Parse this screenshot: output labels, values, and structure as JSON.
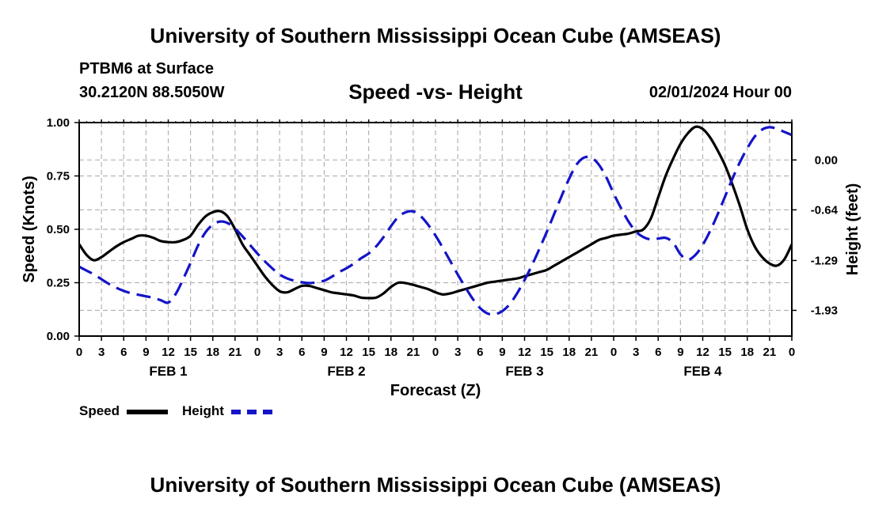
{
  "page": {
    "title_top": "University of Southern Mississippi Ocean Cube (AMSEAS)",
    "title_bottom": "University of Southern Mississippi Ocean Cube (AMSEAS)",
    "station": "PTBM6 at Surface",
    "coords": "30.2120N  88.5050W",
    "datetime": "02/01/2024 Hour 00"
  },
  "legend": {
    "speed_label": "Speed",
    "height_label": "Height"
  },
  "colors": {
    "speed": "#000000",
    "height": "#1414c8",
    "grid": "#b4b4b4"
  },
  "chart_data": {
    "type": "line",
    "title": "Speed -vs- Height",
    "xlabel": "Forecast (Z)",
    "ylabel": "Speed (Knots)",
    "y2label": "Height (feet)",
    "xlim": [
      0,
      96
    ],
    "ylim": [
      0,
      1.0
    ],
    "y2lim": [
      -2.26,
      0.48
    ],
    "x_ticks": [
      0,
      3,
      6,
      9,
      12,
      15,
      18,
      21,
      24,
      27,
      30,
      33,
      36,
      39,
      42,
      45,
      48,
      51,
      54,
      57,
      60,
      63,
      66,
      69,
      72,
      75,
      78,
      81,
      84,
      87,
      90,
      93,
      96
    ],
    "x_tick_labels": [
      "0",
      "3",
      "6",
      "9",
      "12",
      "15",
      "18",
      "21",
      "0",
      "3",
      "6",
      "9",
      "12",
      "15",
      "18",
      "21",
      "0",
      "3",
      "6",
      "9",
      "12",
      "15",
      "18",
      "21",
      "0",
      "3",
      "6",
      "9",
      "12",
      "15",
      "18",
      "21",
      "0"
    ],
    "day_labels": [
      {
        "x": 12,
        "label": "FEB 1"
      },
      {
        "x": 36,
        "label": "FEB 2"
      },
      {
        "x": 60,
        "label": "FEB 3"
      },
      {
        "x": 84,
        "label": "FEB 4"
      }
    ],
    "y_ticks": [
      0.0,
      0.25,
      0.5,
      0.75,
      1.0
    ],
    "y_tick_labels": [
      "0.00",
      "0.25",
      "0.50",
      "0.75",
      "1.00"
    ],
    "y2_ticks": [
      0.0,
      -0.64,
      -1.29,
      -1.93
    ],
    "y2_tick_labels": [
      "0.00",
      "-0.64",
      "-1.29",
      "-1.93"
    ],
    "series": [
      {
        "name": "Speed",
        "axis": "left",
        "style": "solid",
        "x": [
          0,
          1,
          2,
          3,
          4,
          5,
          6,
          7,
          8,
          9,
          10,
          11,
          12,
          13,
          14,
          15,
          16,
          17,
          18,
          19,
          20,
          21,
          22,
          23,
          24,
          25,
          26,
          27,
          28,
          29,
          30,
          31,
          32,
          33,
          34,
          35,
          36,
          37,
          38,
          39,
          40,
          41,
          42,
          43,
          44,
          45,
          46,
          47,
          48,
          49,
          50,
          51,
          52,
          53,
          54,
          55,
          56,
          57,
          58,
          59,
          60,
          61,
          62,
          63,
          64,
          65,
          66,
          67,
          68,
          69,
          70,
          71,
          72,
          73,
          74,
          75,
          76,
          77,
          78,
          79,
          80,
          81,
          82,
          83,
          84,
          85,
          86,
          87,
          88,
          89,
          90,
          91,
          92,
          93,
          94,
          95,
          96
        ],
        "values": [
          0.43,
          0.38,
          0.355,
          0.37,
          0.395,
          0.42,
          0.44,
          0.455,
          0.47,
          0.47,
          0.46,
          0.445,
          0.44,
          0.44,
          0.45,
          0.47,
          0.52,
          0.56,
          0.58,
          0.585,
          0.56,
          0.5,
          0.43,
          0.38,
          0.33,
          0.28,
          0.24,
          0.21,
          0.205,
          0.22,
          0.235,
          0.235,
          0.225,
          0.215,
          0.205,
          0.2,
          0.195,
          0.19,
          0.18,
          0.178,
          0.18,
          0.2,
          0.23,
          0.25,
          0.248,
          0.24,
          0.23,
          0.22,
          0.205,
          0.195,
          0.2,
          0.21,
          0.22,
          0.23,
          0.24,
          0.25,
          0.255,
          0.26,
          0.265,
          0.27,
          0.28,
          0.29,
          0.3,
          0.31,
          0.33,
          0.35,
          0.37,
          0.39,
          0.41,
          0.43,
          0.45,
          0.46,
          0.47,
          0.475,
          0.48,
          0.49,
          0.5,
          0.55,
          0.65,
          0.75,
          0.83,
          0.9,
          0.95,
          0.98,
          0.97,
          0.93,
          0.87,
          0.8,
          0.71,
          0.61,
          0.5,
          0.42,
          0.37,
          0.34,
          0.33,
          0.36,
          0.43
        ]
      },
      {
        "name": "Height",
        "axis": "right",
        "style": "dashed",
        "x": [
          0,
          1,
          2,
          3,
          4,
          5,
          6,
          7,
          8,
          9,
          10,
          11,
          12,
          13,
          14,
          15,
          16,
          17,
          18,
          19,
          20,
          21,
          22,
          23,
          24,
          25,
          26,
          27,
          28,
          29,
          30,
          31,
          32,
          33,
          34,
          35,
          36,
          37,
          38,
          39,
          40,
          41,
          42,
          43,
          44,
          45,
          46,
          47,
          48,
          49,
          50,
          51,
          52,
          53,
          54,
          55,
          56,
          57,
          58,
          59,
          60,
          61,
          62,
          63,
          64,
          65,
          66,
          67,
          68,
          69,
          70,
          71,
          72,
          73,
          74,
          75,
          76,
          77,
          78,
          79,
          80,
          81,
          82,
          83,
          84,
          85,
          86,
          87,
          88,
          89,
          90,
          91,
          92,
          93,
          94,
          95,
          96
        ],
        "values": [
          -1.37,
          -1.42,
          -1.47,
          -1.53,
          -1.59,
          -1.64,
          -1.68,
          -1.71,
          -1.73,
          -1.75,
          -1.77,
          -1.8,
          -1.83,
          -1.72,
          -1.53,
          -1.32,
          -1.1,
          -0.93,
          -0.83,
          -0.79,
          -0.81,
          -0.88,
          -0.98,
          -1.09,
          -1.2,
          -1.3,
          -1.39,
          -1.47,
          -1.52,
          -1.55,
          -1.57,
          -1.58,
          -1.57,
          -1.55,
          -1.5,
          -1.44,
          -1.39,
          -1.33,
          -1.26,
          -1.2,
          -1.11,
          -0.99,
          -0.85,
          -0.73,
          -0.67,
          -0.66,
          -0.72,
          -0.83,
          -0.97,
          -1.13,
          -1.3,
          -1.47,
          -1.63,
          -1.78,
          -1.9,
          -1.97,
          -1.98,
          -1.94,
          -1.85,
          -1.71,
          -1.54,
          -1.35,
          -1.14,
          -0.92,
          -0.69,
          -0.46,
          -0.24,
          -0.06,
          0.03,
          0.03,
          -0.06,
          -0.22,
          -0.43,
          -0.62,
          -0.79,
          -0.92,
          -0.99,
          -1.02,
          -1.01,
          -1.0,
          -1.06,
          -1.21,
          -1.28,
          -1.22,
          -1.09,
          -0.91,
          -0.7,
          -0.47,
          -0.24,
          -0.03,
          0.15,
          0.3,
          0.39,
          0.42,
          0.4,
          0.36,
          0.32
        ]
      }
    ]
  }
}
